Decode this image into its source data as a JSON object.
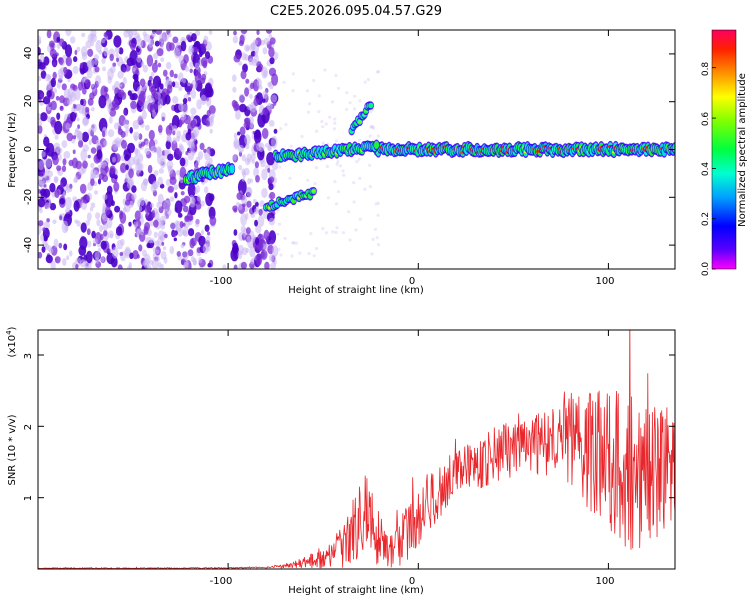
{
  "title": "C2E5.2026.095.04.57.G29",
  "colors": {
    "snr_line": "#e8262b",
    "scatter_low": "#c9b2f2",
    "scatter_mid": "#7a2cd6",
    "scatter_high": "#4b00c8",
    "track_core": "#d81b1b",
    "track_glow": "#2ee6b0"
  },
  "chart_data": [
    {
      "type": "heatmap",
      "name": "spectrogram",
      "xlabel": "Height of straight line (km)",
      "ylabel": "Frequency (Hz)",
      "xlim": [
        -200,
        135
      ],
      "ylim": [
        -50,
        50
      ],
      "xticks": [
        -100,
        0,
        100
      ],
      "yticks": [
        -40,
        -20,
        0,
        20,
        40
      ],
      "xtick_labels": [
        "-100",
        "0",
        "100"
      ],
      "ytick_labels": [
        "-40",
        "-20",
        "0",
        "20",
        "40"
      ],
      "colorbar": {
        "label": "Normalized spectral amplitude",
        "range": [
          0,
          0.95
        ],
        "ticks": [
          0,
          0.2,
          0.4,
          0.6,
          0.8
        ],
        "tick_labels": [
          "0.0",
          "0.2",
          "0.4",
          "0.6",
          "0.8"
        ]
      },
      "features": [
        {
          "name": "main-track",
          "x_from": -22,
          "x_to": 135,
          "freq": 0,
          "amplitude": 0.9
        },
        {
          "name": "approach-track",
          "x_from": -75,
          "x_to": -22,
          "freq_from": -3,
          "freq_to": 1,
          "amplitude": 0.55
        },
        {
          "name": "low-branch",
          "x_from": -80,
          "x_to": -55,
          "freq_from": -24,
          "freq_to": -18,
          "amplitude": 0.55
        },
        {
          "name": "high-branch",
          "x_from": -35,
          "x_to": -25,
          "freq_from": 8,
          "freq_to": 19,
          "amplitude": 0.4
        },
        {
          "name": "left-blob",
          "x_from": -122,
          "x_to": -98,
          "freq_from": -12,
          "freq_to": -8,
          "amplitude": 0.5
        }
      ]
    },
    {
      "type": "line",
      "name": "snr",
      "xlabel": "Height of straight line (km)",
      "ylabel": "SNR (10 * v/v)",
      "yscale_label": "(x10",
      "yscale_exp": "4",
      "xlim": [
        -200,
        135
      ],
      "ylim": [
        0,
        3.35
      ],
      "xticks": [
        -100,
        0,
        100
      ],
      "yticks": [
        1,
        2,
        3
      ],
      "xtick_labels": [
        "-100",
        "0",
        "100"
      ],
      "ytick_labels": [
        "1",
        "2",
        "3"
      ],
      "envelope": [
        {
          "x": -200,
          "mean": 0.01,
          "spread": 0.005
        },
        {
          "x": -120,
          "mean": 0.012,
          "spread": 0.008
        },
        {
          "x": -80,
          "mean": 0.02,
          "spread": 0.01
        },
        {
          "x": -65,
          "mean": 0.06,
          "spread": 0.05
        },
        {
          "x": -50,
          "mean": 0.15,
          "spread": 0.15
        },
        {
          "x": -40,
          "mean": 0.3,
          "spread": 0.3
        },
        {
          "x": -33,
          "mean": 0.6,
          "spread": 0.5
        },
        {
          "x": -27,
          "mean": 0.9,
          "spread": 0.6
        },
        {
          "x": -23,
          "mean": 0.5,
          "spread": 0.5
        },
        {
          "x": -18,
          "mean": 0.3,
          "spread": 0.3
        },
        {
          "x": -12,
          "mean": 0.35,
          "spread": 0.35
        },
        {
          "x": -5,
          "mean": 0.5,
          "spread": 0.4
        },
        {
          "x": 5,
          "mean": 0.9,
          "spread": 0.4
        },
        {
          "x": 20,
          "mean": 1.35,
          "spread": 0.35
        },
        {
          "x": 40,
          "mean": 1.6,
          "spread": 0.4
        },
        {
          "x": 60,
          "mean": 1.75,
          "spread": 0.4
        },
        {
          "x": 80,
          "mean": 1.8,
          "spread": 0.6
        },
        {
          "x": 95,
          "mean": 1.6,
          "spread": 1.0
        },
        {
          "x": 110,
          "mean": 1.4,
          "spread": 1.2
        },
        {
          "x": 120,
          "mean": 1.3,
          "spread": 1.0
        },
        {
          "x": 135,
          "mean": 1.4,
          "spread": 0.9
        }
      ]
    }
  ]
}
